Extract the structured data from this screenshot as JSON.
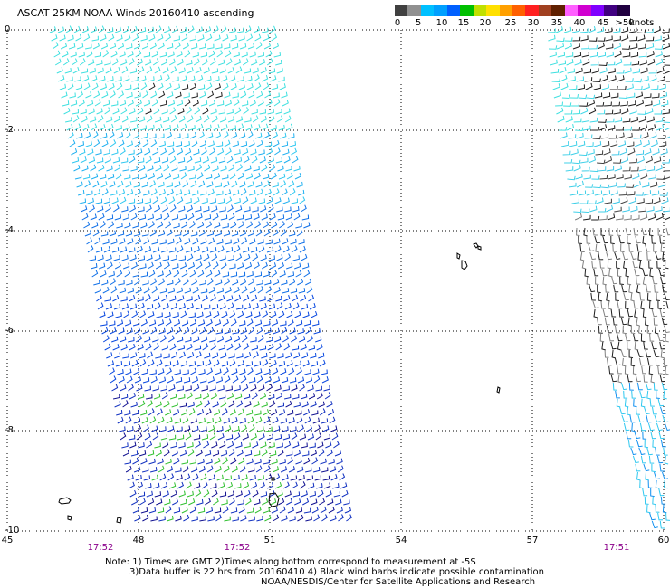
{
  "title": "ASCAT 25KM NOAA Winds 20160410 ascending",
  "colorbar": {
    "colors": [
      "#404040",
      "#909090",
      "#00c0ff",
      "#00a0ff",
      "#0060ff",
      "#00c000",
      "#c0e000",
      "#ffe000",
      "#ffa000",
      "#ff6000",
      "#ff2020",
      "#a04020",
      "#602000",
      "#ff60ff",
      "#d000d0",
      "#8000ff",
      "#400080",
      "#200040"
    ],
    "tick_labels": [
      "0",
      "5",
      "10",
      "15",
      "20",
      "25",
      "30",
      "35",
      "40",
      "45",
      ">50"
    ],
    "units": "knots"
  },
  "axes": {
    "lat_labels": [
      "0",
      "-2",
      "-4",
      "-6",
      "-8",
      "-10"
    ],
    "lon_labels": [
      "45",
      "48",
      "51",
      "54",
      "57",
      "60"
    ],
    "time_labels": [
      "17:52",
      "17:52",
      "17:51"
    ]
  },
  "notes": {
    "line1": "Note: 1) Times are GMT 2)Times along bottom correspond to measurement at -5S",
    "line2": "3)Data buffer is 22 hrs from 20160410 4) Black wind barbs indicate possible contamination",
    "line3": "NOAA/NESDIS/Center for Satellite Applications and Research"
  }
}
